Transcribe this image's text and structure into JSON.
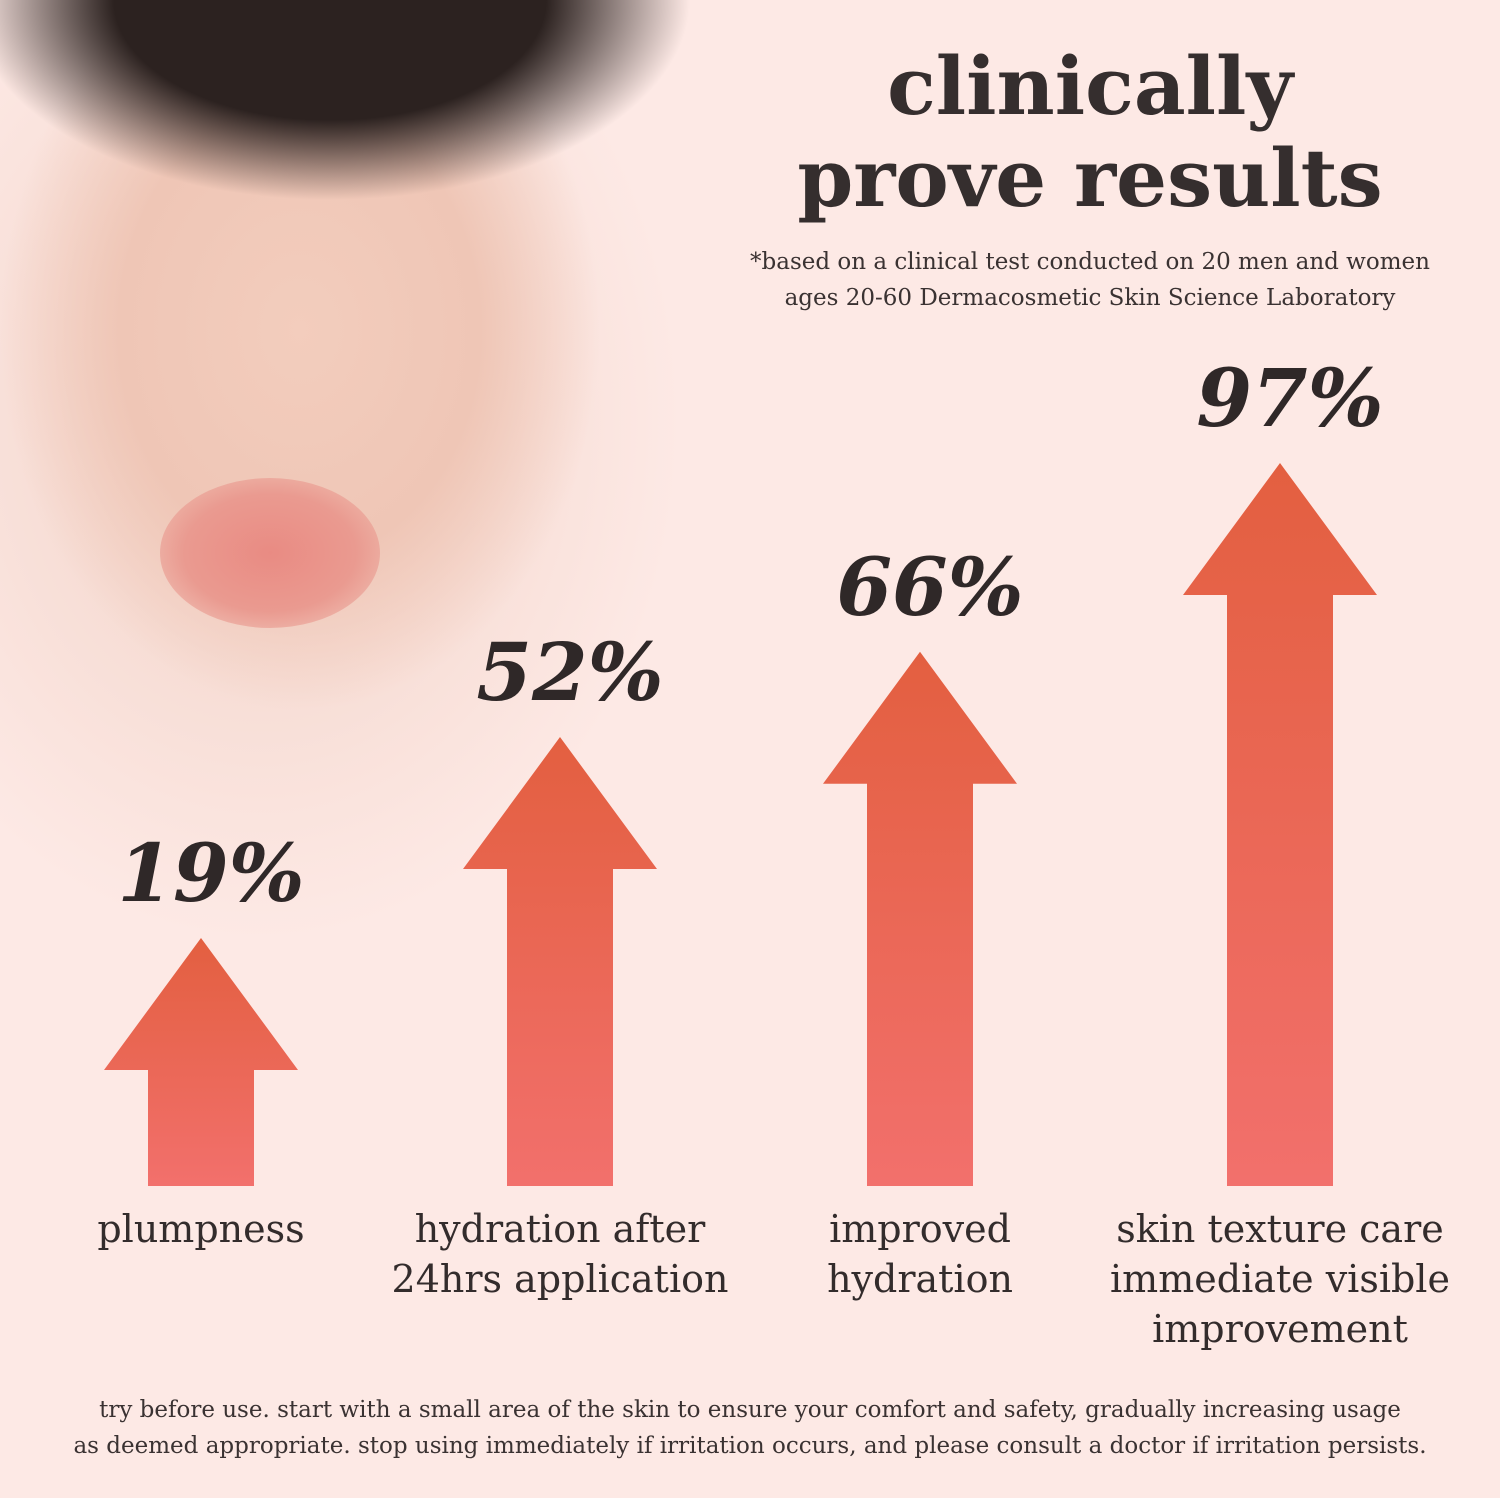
{
  "header": {
    "title_line1": "clinically",
    "title_line2": "prove results",
    "note_line1": "*based on a clinical test conducted on 20 men and women",
    "note_line2": "ages 20-60 Dermacosmetic Skin Science Laboratory"
  },
  "chart_data": {
    "type": "bar",
    "categories": [
      "plumpness",
      "hydration after 24hrs application",
      "improved hydration",
      "skin texture care immediate visible improvement"
    ],
    "values": [
      19,
      52,
      66,
      97
    ],
    "value_labels": [
      "19%",
      "52%",
      "66%",
      "97%"
    ],
    "label_lines": [
      [
        "plumpness"
      ],
      [
        "hydration after",
        "24hrs application"
      ],
      [
        "improved",
        "hydration"
      ],
      [
        "skin texture care",
        "immediate visible",
        "improvement"
      ]
    ],
    "mark": "arrow",
    "colors": {
      "top": "#e35f40",
      "bottom": "#f2706c"
    }
  },
  "footer": {
    "line1": "try before use. start with a small area of the skin to ensure your comfort and safety, gradually increasing usage",
    "line2": "as deemed appropriate. stop using immediately if irritation occurs, and please consult a doctor if irritation persists."
  }
}
